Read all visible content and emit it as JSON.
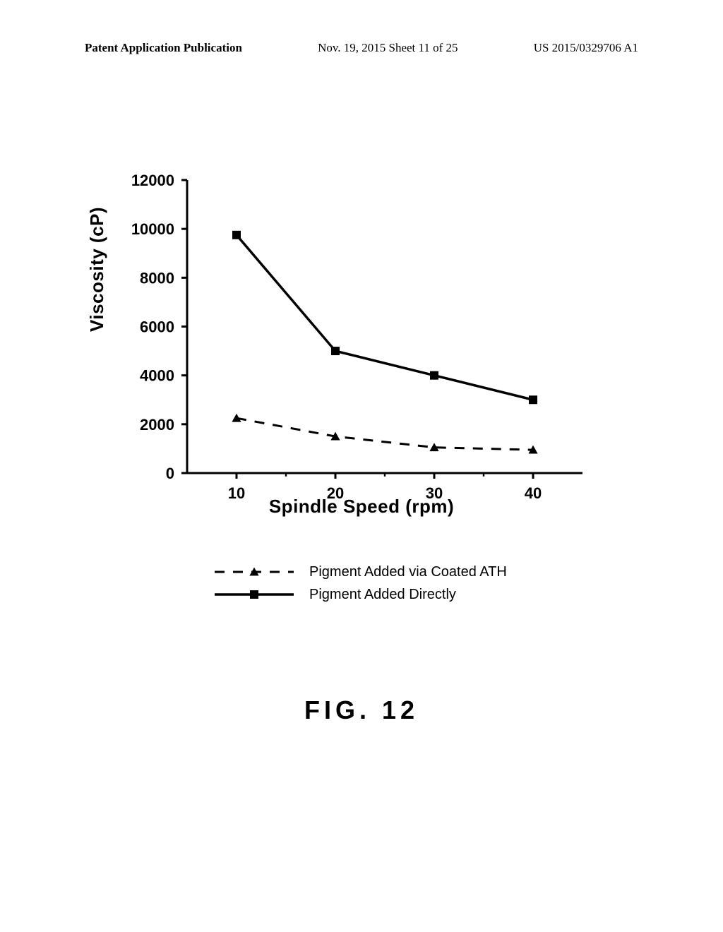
{
  "header": {
    "left": "Patent Application Publication",
    "center": "Nov. 19, 2015  Sheet 11 of 25",
    "right": "US 2015/0329706 A1"
  },
  "chart": {
    "type": "line",
    "ylabel": "Viscosity (cP)",
    "xlabel": "Spindle Speed (rpm)",
    "xlim": [
      5,
      45
    ],
    "ylim": [
      0,
      12000
    ],
    "xticks": [
      10,
      20,
      30,
      40
    ],
    "yticks": [
      0,
      2000,
      4000,
      6000,
      8000,
      10000,
      12000
    ],
    "background_color": "#ffffff",
    "axis_color": "#000000",
    "axis_width": 3,
    "tick_len": 8,
    "tick_label_fontsize": 22,
    "tick_label_fontweight": "bold",
    "label_fontsize": 26,
    "label_fontweight": "bold",
    "series": [
      {
        "name": "Pigment Added via Coated ATH",
        "marker": "triangle",
        "marker_size": 12,
        "line_style": "dashed",
        "line_width": 3,
        "dash_pattern": "14,12",
        "color": "#000000",
        "x": [
          10,
          20,
          30,
          40
        ],
        "y": [
          2250,
          1500,
          1050,
          950
        ]
      },
      {
        "name": "Pigment Added Directly",
        "marker": "square",
        "marker_size": 12,
        "line_style": "solid",
        "line_width": 3.5,
        "color": "#000000",
        "x": [
          10,
          20,
          30,
          40
        ],
        "y": [
          9750,
          5000,
          4000,
          3000
        ]
      }
    ]
  },
  "legend": {
    "items": [
      {
        "label": "Pigment Added via Coated ATH",
        "series_index": 0
      },
      {
        "label": "Pigment Added Directly",
        "series_index": 1
      }
    ]
  },
  "figure_caption": "FIG. 12"
}
